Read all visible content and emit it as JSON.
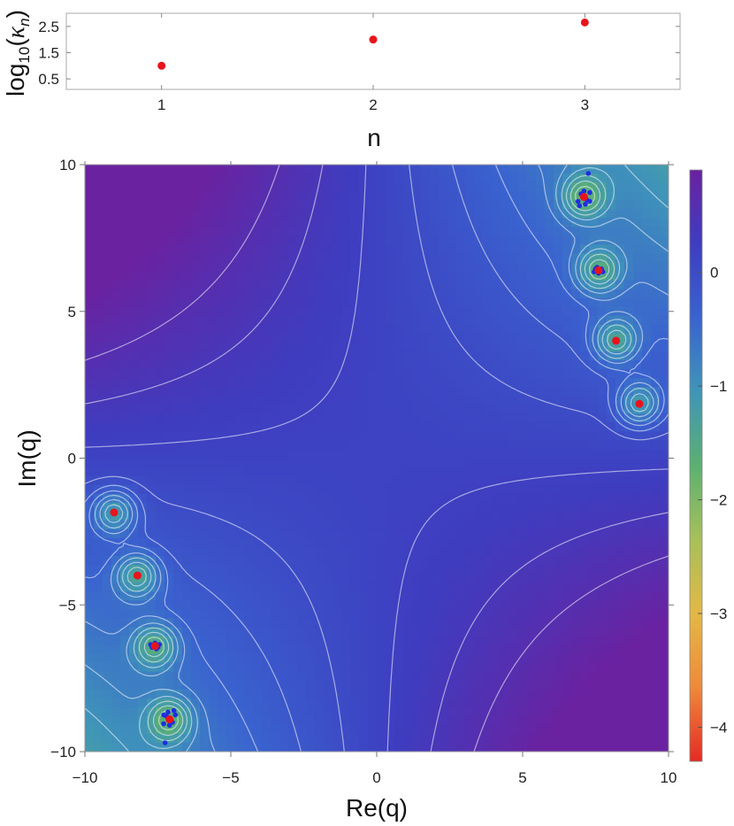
{
  "chart_data": [
    {
      "type": "scatter",
      "xlabel": "n",
      "ylabel": "log10(κn)",
      "xlim": [
        0.55,
        3.45
      ],
      "ylim": [
        0.1,
        3.0
      ],
      "xticks": [
        "1",
        "2",
        "3"
      ],
      "yticks": [
        "0.5",
        "1.5",
        "2.5"
      ],
      "ytick_values": [
        0.5,
        1.5,
        2.5
      ],
      "xtick_values": [
        1,
        2,
        3
      ],
      "point_color": "#e8141c",
      "x": [
        1,
        2,
        3
      ],
      "y": [
        1.0,
        2.0,
        2.65
      ]
    },
    {
      "type": "heatmap",
      "xlabel": "Re(q)",
      "ylabel": "Im(q)",
      "xlim": [
        -10,
        10
      ],
      "ylim": [
        -10,
        10
      ],
      "xticks": [
        "−10",
        "−5",
        "0",
        "5",
        "10"
      ],
      "xtick_values": [
        -10,
        -5,
        0,
        5,
        10
      ],
      "yticks": [
        "−10",
        "−5",
        "0",
        "5",
        "10"
      ],
      "ytick_values": [
        -10,
        -5,
        0,
        5,
        10
      ],
      "colorbar": {
        "ticks": [
          "0",
          "−1",
          "−2",
          "−3",
          "−4"
        ],
        "tick_values": [
          0,
          -1,
          -2,
          -3,
          -4
        ],
        "range": [
          -4.3,
          0.9
        ],
        "colors": [
          "#e42a25",
          "#ee8a3a",
          "#e3b846",
          "#a7c05a",
          "#5cb071",
          "#3f95b8",
          "#3a63cf",
          "#3e3dc0",
          "#6a22a0"
        ]
      },
      "contours": "white level lines",
      "red_points": [
        {
          "x": 9.0,
          "y": 1.85
        },
        {
          "x": 8.2,
          "y": 4.0
        },
        {
          "x": 7.6,
          "y": 6.4
        },
        {
          "x": 7.1,
          "y": 8.9
        },
        {
          "x": -9.0,
          "y": -1.85
        },
        {
          "x": -8.2,
          "y": -4.0
        },
        {
          "x": -7.6,
          "y": -6.4
        },
        {
          "x": -7.1,
          "y": -8.9
        }
      ],
      "blue_points": [
        {
          "x": 7.0,
          "y": 9.0
        },
        {
          "x": 7.2,
          "y": 8.8
        },
        {
          "x": 6.9,
          "y": 8.75
        },
        {
          "x": 7.3,
          "y": 9.05
        },
        {
          "x": 7.1,
          "y": 9.1
        },
        {
          "x": 6.95,
          "y": 8.6
        },
        {
          "x": 7.15,
          "y": 8.65
        },
        {
          "x": 7.3,
          "y": 8.75
        },
        {
          "x": 7.25,
          "y": 9.7
        },
        {
          "x": 7.5,
          "y": 6.45
        },
        {
          "x": 7.6,
          "y": 6.3
        },
        {
          "x": 7.7,
          "y": 6.45
        },
        {
          "x": 7.45,
          "y": 6.35
        },
        {
          "x": 7.55,
          "y": 6.5
        },
        {
          "x": 7.75,
          "y": 6.35
        },
        {
          "x": -7.0,
          "y": -9.0
        },
        {
          "x": -7.2,
          "y": -8.8
        },
        {
          "x": -6.9,
          "y": -8.75
        },
        {
          "x": -7.3,
          "y": -9.05
        },
        {
          "x": -7.1,
          "y": -9.1
        },
        {
          "x": -6.95,
          "y": -8.6
        },
        {
          "x": -7.15,
          "y": -8.65
        },
        {
          "x": -7.3,
          "y": -8.75
        },
        {
          "x": -7.25,
          "y": -9.7
        },
        {
          "x": -7.5,
          "y": -6.45
        },
        {
          "x": -7.6,
          "y": -6.3
        },
        {
          "x": -7.7,
          "y": -6.45
        },
        {
          "x": -7.45,
          "y": -6.35
        },
        {
          "x": -7.55,
          "y": -6.5
        },
        {
          "x": -7.75,
          "y": -6.35
        },
        {
          "x": -7.05,
          "y": -8.95
        }
      ],
      "red_color": "#e8141c",
      "blue_color": "#1f2de0"
    }
  ]
}
